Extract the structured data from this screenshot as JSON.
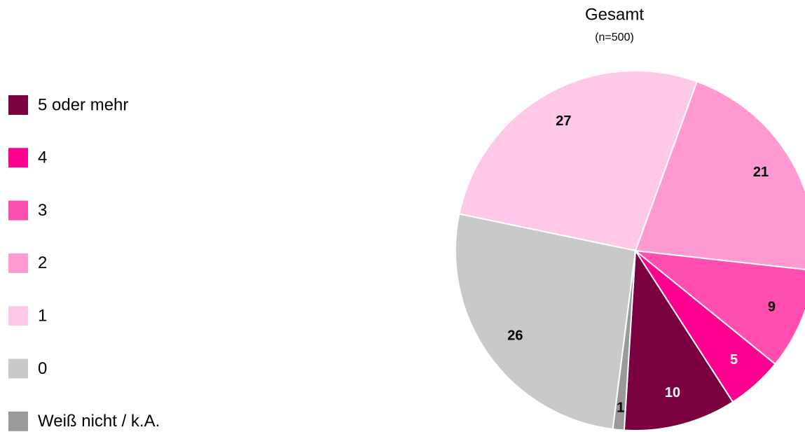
{
  "chart_data": {
    "type": "pie",
    "title": "Gesamt",
    "subtitle": "(n=500)",
    "categories": [
      "5 oder mehr",
      "4",
      "3",
      "2",
      "1",
      "0",
      "Weiß nicht / k.A."
    ],
    "values": [
      10,
      5,
      9,
      21,
      27,
      26,
      1
    ],
    "colors": [
      "#7a0040",
      "#ff0090",
      "#ff4db0",
      "#ff99d2",
      "#ffc8e8",
      "#c8c8c8",
      "#999999"
    ],
    "label_colors": [
      "#ffffff",
      "#ffffff",
      "#000000",
      "#000000",
      "#000000",
      "#000000",
      "#000000"
    ],
    "legend": "left"
  }
}
